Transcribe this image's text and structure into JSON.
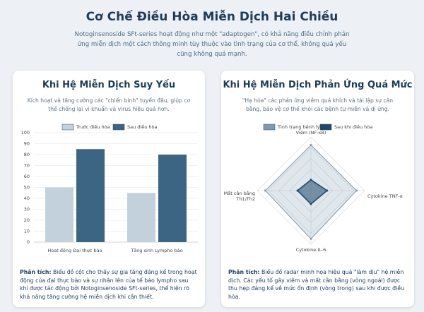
{
  "header": {
    "title": "Cơ Chế Điều Hòa Miễn Dịch Hai Chiều",
    "subtitle": "Notoginsenoside SFt-series hoạt động như một \"adaptogen\", có khả năng điều chỉnh phản ứng miễn dịch một cách thông minh tùy thuộc vào tình trạng của cơ thể, không quá yếu cũng không quá mạnh."
  },
  "cards": [
    {
      "title": "Khi Hệ Miễn Dịch Suy Yếu",
      "description": "Kích hoạt và tăng cường các \"chiến binh\" tuyến đầu, giúp cơ thể chống lại vi khuẩn và virus hiệu quả hơn.",
      "analysis_label": "Phân tích:",
      "analysis": "Biểu đồ cột cho thấy sự gia tăng đáng kể trong hoạt động của đại thực bào và sự nhân lên của tế bào lympho sau khi được tác động bởi Notoginsenoside SFt-series, thể hiện rõ khả năng tăng cường hệ miễn dịch khi cần thiết."
    },
    {
      "title": "Khi Hệ Miễn Dịch Phản Ứng Quá Mức",
      "description": "\"Hạ hỏa\" các phản ứng viêm quá khích và tái lập sự cân bằng, bảo vệ cơ thể khỏi các bệnh tự miễn và dị ứng.",
      "analysis_label": "Phân tích:",
      "analysis": "Biểu đồ radar minh họa hiệu quả \"làm dịu\" hệ miễn dịch. Các yếu tố gây viêm và mất cân bằng (vòng ngoài) được thu hẹp đáng kể về mức ổn định (vòng trong) sau khi được điều hòa."
    }
  ],
  "chart_data": [
    {
      "type": "bar",
      "categories": [
        "Hoạt động Đại thực bào",
        "Tăng sinh Lympho bào"
      ],
      "series": [
        {
          "name": "Trước điều hòa",
          "color": "#c3d1dc",
          "values": [
            50,
            45
          ]
        },
        {
          "name": "Sau điều hòa",
          "color": "#3c6584",
          "values": [
            85,
            80
          ]
        }
      ],
      "ylim": [
        0,
        100
      ],
      "yticks": [
        0,
        10,
        20,
        30,
        40,
        50,
        60,
        70,
        80,
        90,
        100
      ],
      "grid": true
    },
    {
      "type": "radar",
      "axes": [
        "Viêm (NF-κB)",
        "Cytokine TNF-α",
        "Cytokine IL-6",
        "Mất cân bằng Th1/Th2"
      ],
      "series": [
        {
          "name": "Tình trạng bệnh lý",
          "color": "#7f9bb3",
          "values": [
            85,
            85,
            90,
            85
          ]
        },
        {
          "name": "Sau khi điều hòa",
          "color": "#1f4a6b",
          "values": [
            20,
            30,
            25,
            25
          ]
        }
      ],
      "rlim": [
        0,
        100
      ],
      "rticks": [
        20,
        40,
        60,
        80,
        100
      ],
      "grid": true
    }
  ]
}
